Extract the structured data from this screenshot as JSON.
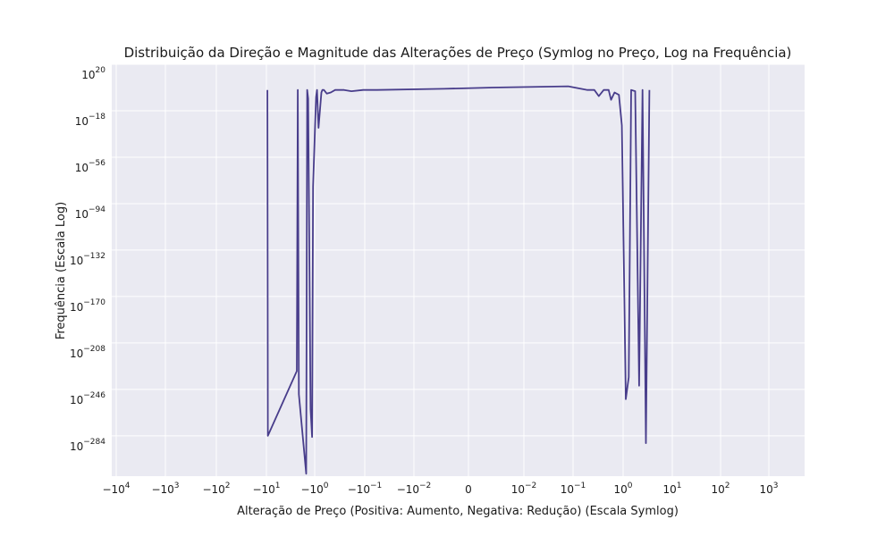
{
  "chart_data": {
    "type": "line",
    "title": "Distribuição da Direção e Magnitude das Alterações de Preço (Symlog no Preço, Log na Frequência)",
    "xlabel": "Alteração de Preço (Positiva: Aumento, Negativa: Redução) (Escala Symlog)",
    "ylabel": "Frequência (Escala Log)",
    "xscale": "symlog",
    "yscale": "log",
    "grid": true,
    "line_color": "#483d8b",
    "background_color": "#eaeaf2",
    "x_ticks": [
      {
        "base": "−10",
        "exp": "4"
      },
      {
        "base": "−10",
        "exp": "3"
      },
      {
        "base": "−10",
        "exp": "2"
      },
      {
        "base": "−10",
        "exp": "1"
      },
      {
        "base": "−10",
        "exp": "0"
      },
      {
        "base": "−10",
        "exp": "−1"
      },
      {
        "base": "−10",
        "exp": "−2"
      },
      {
        "base": "0",
        "exp": ""
      },
      {
        "base": "10",
        "exp": "−2"
      },
      {
        "base": "10",
        "exp": "−1"
      },
      {
        "base": "10",
        "exp": "0"
      },
      {
        "base": "10",
        "exp": "1"
      },
      {
        "base": "10",
        "exp": "2"
      },
      {
        "base": "10",
        "exp": "3"
      }
    ],
    "y_ticks": [
      {
        "base": "10",
        "exp": "20"
      },
      {
        "base": "10",
        "exp": "−18"
      },
      {
        "base": "10",
        "exp": "−56"
      },
      {
        "base": "10",
        "exp": "−94"
      },
      {
        "base": "10",
        "exp": "−132"
      },
      {
        "base": "10",
        "exp": "−170"
      },
      {
        "base": "10",
        "exp": "−208"
      },
      {
        "base": "10",
        "exp": "−246"
      },
      {
        "base": "10",
        "exp": "−284"
      }
    ],
    "ylim_log10": [
      -317,
      20
    ],
    "series": [
      {
        "x_sym": [
          -4.09,
          -4.08,
          -3.49,
          -3.47,
          -3.45,
          -3.3,
          -3.28,
          -3.26,
          -3.21,
          -3.18,
          -3.16,
          -3.1,
          -3.08,
          -3.05,
          -2.99,
          -2.97,
          -2.94,
          -2.88,
          -2.8,
          -2.71,
          -2.61,
          -2.53,
          -2.38,
          -2.14,
          -1.86,
          -0.5,
          0.5,
          2.03,
          2.42,
          2.56,
          2.65,
          2.75,
          2.85,
          2.9,
          2.97,
          3.06,
          3.12,
          3.2,
          3.26,
          3.31,
          3.39,
          3.47,
          3.54,
          3.61,
          3.68
        ],
        "y_log": [
          -1,
          -284,
          -231,
          -1,
          -250,
          -315,
          -1,
          -8,
          -262,
          -285,
          -80,
          -7,
          -1,
          -32,
          -3,
          -1,
          -1,
          -4,
          -3,
          -1,
          -1,
          -1,
          -2,
          -1,
          -1,
          0,
          1,
          2,
          -1,
          -1,
          -6,
          -1,
          -1,
          -9,
          -3,
          -5,
          -30,
          -254,
          -236,
          -1,
          -2,
          -243,
          -1,
          -290,
          -1
        ]
      }
    ]
  }
}
